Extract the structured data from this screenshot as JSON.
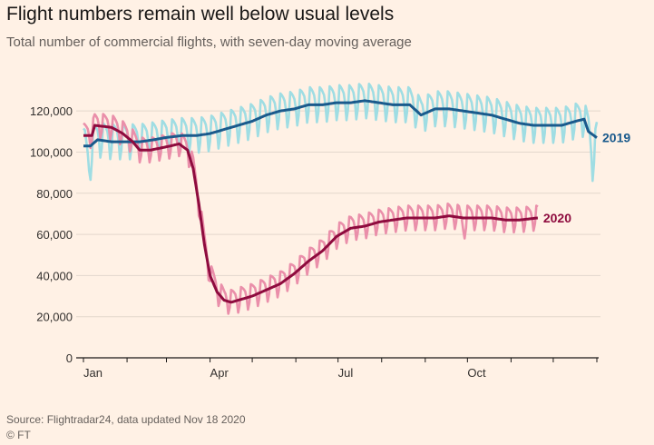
{
  "header": {
    "title": "Flight numbers remain well below usual levels",
    "subtitle": "Total number of commercial flights, with seven-day moving average"
  },
  "footer": {
    "source": "Source: Flightradar24, data updated Nov 18 2020",
    "credit": "© FT"
  },
  "colors": {
    "background": "#fff1e5",
    "grid": "#e3d7cc",
    "s2019_daily": "#9fdde3",
    "s2019_avg": "#1a5a8c",
    "s2020_daily": "#ea8faa",
    "s2020_avg": "#8e0b3e",
    "text": "#33302e"
  },
  "chart_data": {
    "type": "line",
    "title": "Flight numbers remain well below usual levels",
    "subtitle": "Total number of commercial flights, with seven-day moving average",
    "xlabel": "",
    "ylabel": "",
    "x_unit": "day of year",
    "xlim": [
      0,
      365
    ],
    "ylim": [
      0,
      130000
    ],
    "yticks": [
      0,
      20000,
      40000,
      60000,
      80000,
      100000,
      120000
    ],
    "ytick_labels": [
      "0",
      "20,000",
      "40,000",
      "60,000",
      "80,000",
      "100,000",
      "120,000"
    ],
    "xticks": [
      0,
      90,
      181,
      273
    ],
    "xtick_labels": [
      "Jan",
      "Apr",
      "Jul",
      "Oct"
    ],
    "month_ticks": [
      0,
      31,
      59,
      90,
      120,
      151,
      181,
      212,
      243,
      273,
      304,
      334,
      365
    ],
    "weekly_amplitude": {
      "2019": 8500,
      "2020": 6000
    },
    "series": [
      {
        "name": "2019",
        "label": "2019",
        "avg_points": [
          [
            0,
            103000
          ],
          [
            5,
            103000
          ],
          [
            10,
            106000
          ],
          [
            20,
            105000
          ],
          [
            30,
            105000
          ],
          [
            40,
            105000
          ],
          [
            50,
            106000
          ],
          [
            58,
            107000
          ],
          [
            70,
            108000
          ],
          [
            80,
            108000
          ],
          [
            90,
            109000
          ],
          [
            100,
            111000
          ],
          [
            110,
            113000
          ],
          [
            120,
            115000
          ],
          [
            130,
            118000
          ],
          [
            140,
            120000
          ],
          [
            150,
            121000
          ],
          [
            160,
            123000
          ],
          [
            170,
            123000
          ],
          [
            180,
            124000
          ],
          [
            190,
            124000
          ],
          [
            200,
            125000
          ],
          [
            210,
            124000
          ],
          [
            220,
            123000
          ],
          [
            232,
            123000
          ],
          [
            240,
            118000
          ],
          [
            250,
            121000
          ],
          [
            260,
            121000
          ],
          [
            270,
            120000
          ],
          [
            280,
            119000
          ],
          [
            290,
            118000
          ],
          [
            300,
            116000
          ],
          [
            310,
            114000
          ],
          [
            320,
            113000
          ],
          [
            330,
            113000
          ],
          [
            340,
            113000
          ],
          [
            350,
            115000
          ],
          [
            356,
            116000
          ],
          [
            359,
            110000
          ],
          [
            365,
            107000
          ]
        ],
        "daily_dips": [
          [
            4,
            -12000
          ],
          [
            362,
            -14000
          ]
        ]
      },
      {
        "name": "2020",
        "label": "2020",
        "end_day": 323,
        "avg_points": [
          [
            0,
            108000
          ],
          [
            6,
            108000
          ],
          [
            8,
            113000
          ],
          [
            20,
            112000
          ],
          [
            28,
            109000
          ],
          [
            35,
            105000
          ],
          [
            40,
            101000
          ],
          [
            48,
            101000
          ],
          [
            55,
            102000
          ],
          [
            62,
            103000
          ],
          [
            68,
            104000
          ],
          [
            74,
            101000
          ],
          [
            78,
            92000
          ],
          [
            82,
            75000
          ],
          [
            86,
            55000
          ],
          [
            90,
            40000
          ],
          [
            95,
            32000
          ],
          [
            100,
            28000
          ],
          [
            105,
            27000
          ],
          [
            110,
            28000
          ],
          [
            120,
            30000
          ],
          [
            130,
            33000
          ],
          [
            140,
            36000
          ],
          [
            150,
            41000
          ],
          [
            160,
            47000
          ],
          [
            170,
            52000
          ],
          [
            180,
            59000
          ],
          [
            190,
            63000
          ],
          [
            200,
            64000
          ],
          [
            210,
            66000
          ],
          [
            220,
            67000
          ],
          [
            230,
            68000
          ],
          [
            240,
            68000
          ],
          [
            250,
            68000
          ],
          [
            260,
            69000
          ],
          [
            270,
            68000
          ],
          [
            280,
            68000
          ],
          [
            290,
            68000
          ],
          [
            300,
            67000
          ],
          [
            310,
            67000
          ],
          [
            323,
            68000
          ]
        ],
        "daily_dips": [
          [
            270,
            -6000
          ]
        ]
      }
    ]
  }
}
